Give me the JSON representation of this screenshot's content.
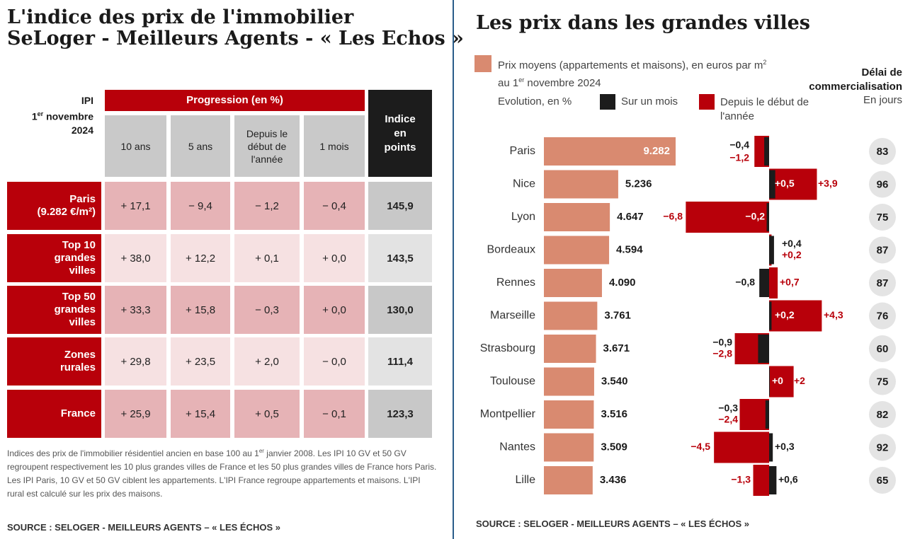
{
  "left": {
    "title_lines": [
      "L'indice des prix de l'immobilier",
      "SeLoger - Meilleurs Agents - « Les Echos »"
    ],
    "ipi_label": "IPI",
    "date_day": "1",
    "date_sup": "er",
    "date_rest": "novembre",
    "date_year": "2024",
    "progression_header": "Progression (en %)",
    "columns": [
      "10 ans",
      "5 ans",
      "Depuis le début de l'année",
      "1 mois"
    ],
    "indice_header": "Indice en points",
    "rows": [
      {
        "label": "Paris",
        "sublabel": "(9.282 €/m²)",
        "values": [
          "+ 17,1",
          "− 9,4",
          "− 1,2",
          "− 0,4"
        ],
        "indice": "145,9"
      },
      {
        "label": "Top 10 grandes villes",
        "sublabel": "",
        "values": [
          "+ 38,0",
          "+ 12,2",
          "+ 0,1",
          "+ 0,0"
        ],
        "indice": "143,5"
      },
      {
        "label": "Top 50 grandes villes",
        "sublabel": "",
        "values": [
          "+ 33,3",
          "+ 15,8",
          "− 0,3",
          "+ 0,0"
        ],
        "indice": "130,0"
      },
      {
        "label": "Zones rurales",
        "sublabel": "",
        "values": [
          "+ 29,8",
          "+ 23,5",
          "+ 2,0",
          "− 0,0"
        ],
        "indice": "111,4"
      },
      {
        "label": "France",
        "sublabel": "",
        "values": [
          "+ 25,9",
          "+ 15,4",
          "+ 0,5",
          "− 0,1"
        ],
        "indice": "123,3"
      }
    ],
    "note_part1": "Indices des prix de l'immobilier résidentiel ancien en base 100 au 1",
    "note_sup": "er",
    "note_part2": " janvier 2008. Les IPI 10 GV et 50 GV regroupent respectivement les 10 plus grandes villes de France et les 50 plus grandes villes de France hors Paris. Les IPI Paris, 10 GV et 50 GV ciblent les appartements. L'IPI France regroupe appartements et maisons. L'IPI rural est calculé sur les prix des maisons.",
    "source": "SOURCE : SELOGER - MEILLEURS AGENTS – « LES ÉCHOS »"
  },
  "right": {
    "title": "Les prix dans les grandes villes",
    "legend_price_a": "Prix moyens (appartements et maisons), en euros par m",
    "legend_price_sup": "2",
    "legend_price_b": " au 1",
    "legend_price_sup2": "er",
    "legend_price_c": " novembre 2024",
    "evolution_label": "Evolution, en %",
    "legend_month": "Sur un mois",
    "legend_year": "Depuis le début de l'année",
    "delai_title": "Délai de commercialisation",
    "delai_unit": "En jours",
    "source": "SOURCE : SELOGER - MEILLEURS AGENTS – « LES ÉCHOS »"
  },
  "colors": {
    "red": "#b8000a",
    "black": "#1c1c1c",
    "salmon": "#d98a70",
    "pink": "#e6b3b6",
    "grey": "#c8c8c8"
  },
  "chart_data": {
    "type": "bar",
    "categories": [
      "Paris",
      "Nice",
      "Lyon",
      "Bordeaux",
      "Rennes",
      "Marseille",
      "Strasbourg",
      "Toulouse",
      "Montpellier",
      "Nantes",
      "Lille"
    ],
    "series": [
      {
        "name": "Prix moyens (appartements et maisons), en euros par m² au 1er novembre 2024",
        "values": [
          9282,
          5236,
          4647,
          4594,
          4090,
          3761,
          3671,
          3540,
          3516,
          3509,
          3436
        ],
        "labels": [
          "9.282",
          "5.236",
          "4.647",
          "4.594",
          "4.090",
          "3.761",
          "3.671",
          "3.540",
          "3.516",
          "3.509",
          "3.436"
        ]
      },
      {
        "name": "Sur un mois",
        "values": [
          -0.4,
          0.5,
          -0.2,
          0.4,
          -0.8,
          0.2,
          -0.9,
          0,
          -0.3,
          0.3,
          0.6
        ],
        "labels": [
          "−0,4",
          "+0,5",
          "−0,2",
          "+0,4",
          "−0,8",
          "+0,2",
          "−0,9",
          "+0",
          "−0,3",
          "+0,3",
          "+0,6"
        ]
      },
      {
        "name": "Depuis le début de l'année",
        "values": [
          -1.2,
          3.9,
          -6.8,
          0.2,
          0.7,
          4.3,
          -2.8,
          2,
          -2.4,
          -4.5,
          -1.3
        ],
        "labels": [
          "−1,2",
          "+3,9",
          "−6,8",
          "+0,2",
          "+0,7",
          "+4,3",
          "−2,8",
          "+2",
          "−2,4",
          "−4,5",
          "−1,3"
        ]
      },
      {
        "name": "Délai de commercialisation",
        "values": [
          83,
          96,
          75,
          87,
          87,
          76,
          60,
          75,
          82,
          92,
          65
        ],
        "labels": [
          "83",
          "96",
          "75",
          "87",
          "87",
          "76",
          "60",
          "75",
          "82",
          "92",
          "65"
        ]
      }
    ]
  }
}
